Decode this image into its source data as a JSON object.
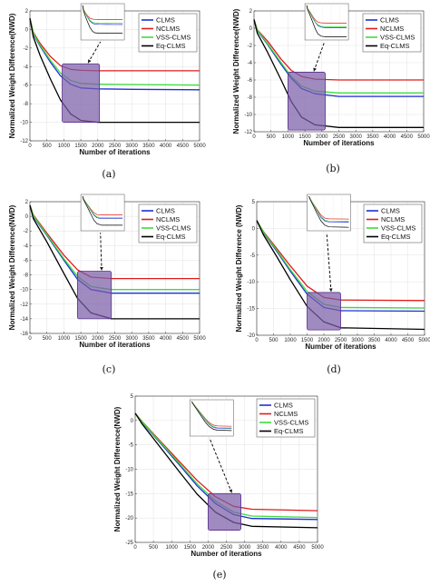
{
  "colors": {
    "CLMS": "#1f2fd6",
    "NCLMS": "#e01b1b",
    "VSS-CLMS": "#3ddc3d",
    "Eq-CLMS": "#000000",
    "zoom_box": "#7b5ea8",
    "zoom_edge": "#5a2f8c"
  },
  "chart_data": [
    {
      "type": "line",
      "caption": "(a)",
      "xlabel": "Number of iterations",
      "ylabel": "Normalized Weight Difference(NWD)",
      "xlim": [
        0,
        5000
      ],
      "ylim": [
        -12,
        2
      ],
      "xticks": [
        "0",
        "500",
        "1000",
        "1500",
        "2000",
        "2500",
        "3000",
        "3500",
        "4000",
        "4500",
        "5000"
      ],
      "yticks": [
        "-12",
        "-10",
        "-8",
        "-6",
        "-4",
        "-2",
        "0",
        "2"
      ],
      "grid": true,
      "legend": "top-right",
      "zoom_box": {
        "x": [
          950,
          2050
        ],
        "y": [
          -10,
          -3.7
        ]
      },
      "series": [
        {
          "name": "CLMS",
          "points": [
            [
              0,
              1.2
            ],
            [
              100,
              -0.5
            ],
            [
              300,
              -1.8
            ],
            [
              600,
              -3.5
            ],
            [
              900,
              -5.0
            ],
            [
              1200,
              -5.9
            ],
            [
              1500,
              -6.3
            ],
            [
              2000,
              -6.4
            ],
            [
              3000,
              -6.45
            ],
            [
              5000,
              -6.5
            ]
          ]
        },
        {
          "name": "NCLMS",
          "points": [
            [
              0,
              1.2
            ],
            [
              100,
              -0.3
            ],
            [
              300,
              -1.5
            ],
            [
              600,
              -2.9
            ],
            [
              900,
              -3.9
            ],
            [
              1200,
              -4.3
            ],
            [
              1500,
              -4.4
            ],
            [
              2000,
              -4.45
            ],
            [
              5000,
              -4.45
            ]
          ]
        },
        {
          "name": "VSS-CLMS",
          "points": [
            [
              0,
              1.2
            ],
            [
              100,
              -0.4
            ],
            [
              300,
              -1.7
            ],
            [
              600,
              -3.3
            ],
            [
              900,
              -4.7
            ],
            [
              1200,
              -5.5
            ],
            [
              1500,
              -5.8
            ],
            [
              2000,
              -5.9
            ],
            [
              5000,
              -6.0
            ]
          ]
        },
        {
          "name": "Eq-CLMS",
          "points": [
            [
              0,
              1.2
            ],
            [
              100,
              -0.8
            ],
            [
              300,
              -2.8
            ],
            [
              600,
              -5.3
            ],
            [
              900,
              -7.6
            ],
            [
              1200,
              -9.1
            ],
            [
              1500,
              -9.8
            ],
            [
              2000,
              -10.0
            ],
            [
              5000,
              -10.0
            ]
          ]
        }
      ]
    },
    {
      "type": "line",
      "caption": "(b)",
      "xlabel": "Number of iterations",
      "ylabel": "Normalized Weight Difference(NWD)",
      "xlim": [
        0,
        5000
      ],
      "ylim": [
        -12,
        2
      ],
      "xticks": [
        "0",
        "500",
        "1000",
        "1500",
        "2000",
        "2500",
        "3000",
        "3500",
        "4000",
        "4500",
        "5000"
      ],
      "yticks": [
        "-12",
        "-10",
        "-8",
        "-6",
        "-4",
        "-2",
        "0",
        "2"
      ],
      "grid": true,
      "legend": "top-right",
      "zoom_box": {
        "x": [
          1000,
          2100
        ],
        "y": [
          -11.8,
          -5.1
        ]
      },
      "series": [
        {
          "name": "CLMS",
          "points": [
            [
              0,
              1.0
            ],
            [
              100,
              -0.3
            ],
            [
              400,
              -1.9
            ],
            [
              800,
              -4.2
            ],
            [
              1100,
              -5.8
            ],
            [
              1400,
              -7.0
            ],
            [
              1800,
              -7.6
            ],
            [
              2500,
              -7.9
            ],
            [
              5000,
              -7.9
            ]
          ]
        },
        {
          "name": "NCLMS",
          "points": [
            [
              0,
              1.0
            ],
            [
              100,
              -0.2
            ],
            [
              400,
              -1.5
            ],
            [
              800,
              -3.6
            ],
            [
              1100,
              -4.9
            ],
            [
              1400,
              -5.6
            ],
            [
              1800,
              -5.9
            ],
            [
              2500,
              -6.0
            ],
            [
              5000,
              -6.0
            ]
          ]
        },
        {
          "name": "VSS-CLMS",
          "points": [
            [
              0,
              1.0
            ],
            [
              100,
              -0.25
            ],
            [
              400,
              -1.8
            ],
            [
              800,
              -4.0
            ],
            [
              1100,
              -5.6
            ],
            [
              1400,
              -6.7
            ],
            [
              1800,
              -7.3
            ],
            [
              2500,
              -7.5
            ],
            [
              5000,
              -7.5
            ]
          ]
        },
        {
          "name": "Eq-CLMS",
          "points": [
            [
              0,
              1.0
            ],
            [
              100,
              -0.6
            ],
            [
              400,
              -2.8
            ],
            [
              800,
              -6.0
            ],
            [
              1100,
              -8.5
            ],
            [
              1400,
              -10.3
            ],
            [
              1800,
              -11.2
            ],
            [
              2500,
              -11.5
            ],
            [
              5000,
              -11.5
            ]
          ]
        }
      ]
    },
    {
      "type": "line",
      "caption": "(c)",
      "xlabel": "Number of iterations",
      "ylabel": "Normalized Weight Difference(NWD)",
      "xlim": [
        0,
        5000
      ],
      "ylim": [
        -16,
        2
      ],
      "xticks": [
        "0",
        "500",
        "1000",
        "1500",
        "2000",
        "2500",
        "3000",
        "3500",
        "4000",
        "4500",
        "5000"
      ],
      "yticks": [
        "-16",
        "-14",
        "-12",
        "-10",
        "-8",
        "-6",
        "-4",
        "-2",
        "0",
        "2"
      ],
      "grid": true,
      "legend": "top-right",
      "zoom_box": {
        "x": [
          1400,
          2400
        ],
        "y": [
          -14,
          -7.5
        ]
      },
      "series": [
        {
          "name": "CLMS",
          "points": [
            [
              0,
              1.5
            ],
            [
              100,
              0.0
            ],
            [
              500,
              -2.6
            ],
            [
              1000,
              -6.0
            ],
            [
              1400,
              -8.6
            ],
            [
              1800,
              -10.0
            ],
            [
              2400,
              -10.5
            ],
            [
              5000,
              -10.5
            ]
          ]
        },
        {
          "name": "NCLMS",
          "points": [
            [
              0,
              1.5
            ],
            [
              100,
              0.2
            ],
            [
              500,
              -2.3
            ],
            [
              1000,
              -5.3
            ],
            [
              1400,
              -7.3
            ],
            [
              1800,
              -8.3
            ],
            [
              2400,
              -8.5
            ],
            [
              5000,
              -8.5
            ]
          ]
        },
        {
          "name": "VSS-CLMS",
          "points": [
            [
              0,
              1.5
            ],
            [
              100,
              0.1
            ],
            [
              500,
              -2.5
            ],
            [
              1000,
              -5.8
            ],
            [
              1400,
              -8.2
            ],
            [
              1800,
              -9.6
            ],
            [
              2400,
              -10.0
            ],
            [
              5000,
              -10.0
            ]
          ]
        },
        {
          "name": "Eq-CLMS",
          "points": [
            [
              0,
              1.5
            ],
            [
              100,
              -0.3
            ],
            [
              500,
              -3.5
            ],
            [
              1000,
              -7.8
            ],
            [
              1400,
              -11.2
            ],
            [
              1800,
              -13.2
            ],
            [
              2400,
              -14.0
            ],
            [
              5000,
              -14.0
            ]
          ]
        }
      ]
    },
    {
      "type": "line",
      "caption": "(d)",
      "xlabel": "Number of iterations",
      "ylabel": "Normalized Weight Difference (NWD)",
      "xlim": [
        0,
        5000
      ],
      "ylim": [
        -20,
        5
      ],
      "xticks": [
        "0",
        "500",
        "1000",
        "1500",
        "2000",
        "2500",
        "3000",
        "3500",
        "4000",
        "4500",
        "5000"
      ],
      "yticks": [
        "-20",
        "-15",
        "-10",
        "-5",
        "0",
        "5"
      ],
      "grid": true,
      "legend": "top-right",
      "zoom_box": {
        "x": [
          1500,
          2500
        ],
        "y": [
          -19,
          -12
        ]
      },
      "series": [
        {
          "name": "CLMS",
          "points": [
            [
              0,
              1.5
            ],
            [
              200,
              -0.8
            ],
            [
              600,
              -4.3
            ],
            [
              1000,
              -8.0
            ],
            [
              1500,
              -12.3
            ],
            [
              2000,
              -14.8
            ],
            [
              2500,
              -15.4
            ],
            [
              5000,
              -15.5
            ]
          ]
        },
        {
          "name": "NCLMS",
          "points": [
            [
              0,
              1.5
            ],
            [
              200,
              -0.6
            ],
            [
              600,
              -3.8
            ],
            [
              1000,
              -7.0
            ],
            [
              1500,
              -10.8
            ],
            [
              2000,
              -12.9
            ],
            [
              2500,
              -13.4
            ],
            [
              5000,
              -13.5
            ]
          ]
        },
        {
          "name": "VSS-CLMS",
          "points": [
            [
              0,
              1.5
            ],
            [
              200,
              -0.7
            ],
            [
              600,
              -4.1
            ],
            [
              1000,
              -7.7
            ],
            [
              1500,
              -11.8
            ],
            [
              2000,
              -14.2
            ],
            [
              2500,
              -14.8
            ],
            [
              5000,
              -14.9
            ]
          ]
        },
        {
          "name": "Eq-CLMS",
          "points": [
            [
              0,
              1.5
            ],
            [
              200,
              -1.2
            ],
            [
              600,
              -5.3
            ],
            [
              1000,
              -9.6
            ],
            [
              1500,
              -14.6
            ],
            [
              2000,
              -17.5
            ],
            [
              2500,
              -18.6
            ],
            [
              5000,
              -18.9
            ]
          ]
        }
      ]
    },
    {
      "type": "line",
      "caption": "(e)",
      "xlabel": "Number of iterations",
      "ylabel": "Normalized Weight Difference(NWD)",
      "xlim": [
        0,
        5000
      ],
      "ylim": [
        -25,
        5
      ],
      "xticks": [
        "0",
        "500",
        "1000",
        "1500",
        "2000",
        "2500",
        "3000",
        "3500",
        "4000",
        "4500",
        "5000"
      ],
      "yticks": [
        "-25",
        "-20",
        "-15",
        "-10",
        "-5",
        "0",
        "5"
      ],
      "grid": true,
      "legend": "top-right",
      "zoom_box": {
        "x": [
          2000,
          2900
        ],
        "y": [
          -22.5,
          -15
        ]
      },
      "series": [
        {
          "name": "CLMS",
          "points": [
            [
              0,
              1.5
            ],
            [
              200,
              -0.5
            ],
            [
              700,
              -4.7
            ],
            [
              1200,
              -9.0
            ],
            [
              1700,
              -13.4
            ],
            [
              2200,
              -17.0
            ],
            [
              2700,
              -19.3
            ],
            [
              3200,
              -20.1
            ],
            [
              5000,
              -20.3
            ]
          ]
        },
        {
          "name": "NCLMS",
          "points": [
            [
              0,
              1.5
            ],
            [
              200,
              -0.3
            ],
            [
              700,
              -4.3
            ],
            [
              1200,
              -8.3
            ],
            [
              1700,
              -12.3
            ],
            [
              2200,
              -15.6
            ],
            [
              2700,
              -17.6
            ],
            [
              3200,
              -18.2
            ],
            [
              5000,
              -18.5
            ]
          ]
        },
        {
          "name": "VSS-CLMS",
          "points": [
            [
              0,
              1.5
            ],
            [
              200,
              -0.4
            ],
            [
              700,
              -4.5
            ],
            [
              1200,
              -8.7
            ],
            [
              1700,
              -13.0
            ],
            [
              2200,
              -16.5
            ],
            [
              2700,
              -18.8
            ],
            [
              3200,
              -19.6
            ],
            [
              5000,
              -19.9
            ]
          ]
        },
        {
          "name": "Eq-CLMS",
          "points": [
            [
              0,
              1.5
            ],
            [
              200,
              -0.8
            ],
            [
              700,
              -5.6
            ],
            [
              1200,
              -10.4
            ],
            [
              1700,
              -15.1
            ],
            [
              2200,
              -18.8
            ],
            [
              2700,
              -20.9
            ],
            [
              3200,
              -21.7
            ],
            [
              5000,
              -22.0
            ]
          ]
        }
      ]
    }
  ]
}
